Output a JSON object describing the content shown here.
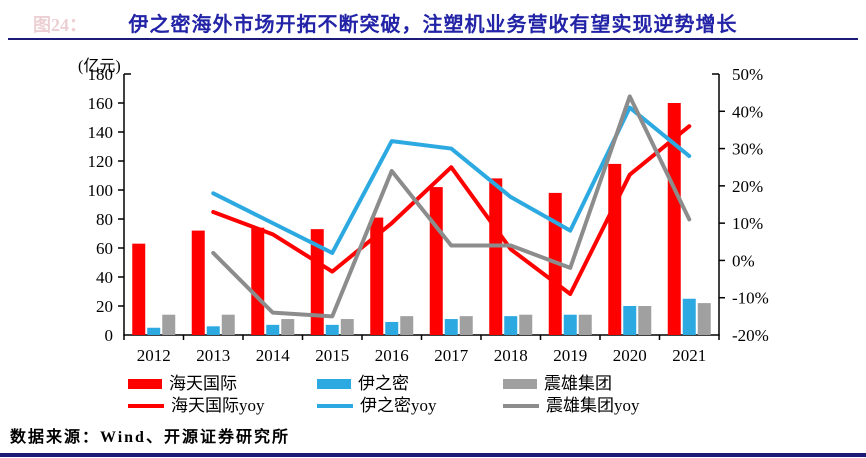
{
  "figure_label": "图24：",
  "title": "伊之密海外市场开拓不断突破，注塑机业务营收有望实现逆势增长",
  "source": "数据来源：Wind、开源证券研究所",
  "colors": {
    "title_navy": "#2223a6",
    "rule_navy": "#1c1c78",
    "red": "#fe0000",
    "blue": "#2ca9e1",
    "gray_bar": "#a0a0a0",
    "gray_line": "#8c8c8c",
    "axis_black": "#000000"
  },
  "chart_data": {
    "type": "bar+line combo",
    "categories": [
      "2012",
      "2013",
      "2014",
      "2015",
      "2016",
      "2017",
      "2018",
      "2019",
      "2020",
      "2021"
    ],
    "left_axis": {
      "unit": "(亿元)",
      "min": 0,
      "max": 180,
      "step": 20,
      "tick_labels": [
        "0",
        "20",
        "40",
        "60",
        "80",
        "100",
        "120",
        "140",
        "160",
        "180"
      ]
    },
    "right_axis": {
      "min": -20,
      "max": 50,
      "step": 10,
      "tick_labels": [
        "-20%",
        "-10%",
        "0%",
        "10%",
        "20%",
        "30%",
        "40%",
        "50%"
      ]
    },
    "bar_series": [
      {
        "name": "海天国际",
        "color": "#fe0000",
        "axis": "left",
        "values": [
          63,
          72,
          74,
          73,
          81,
          102,
          108,
          98,
          118,
          160
        ]
      },
      {
        "name": "伊之密",
        "color": "#2ca9e1",
        "axis": "left",
        "values": [
          5,
          6,
          7,
          7,
          9,
          11,
          13,
          14,
          20,
          25
        ]
      },
      {
        "name": "震雄集团",
        "color": "#a0a0a0",
        "axis": "left",
        "values": [
          14,
          14,
          11,
          11,
          13,
          13,
          14,
          14,
          20,
          22
        ]
      }
    ],
    "line_series": [
      {
        "name": "海天国际yoy",
        "color": "#fe0000",
        "axis": "right",
        "values": [
          null,
          13,
          7,
          -3,
          10,
          25,
          3,
          -9,
          23,
          36
        ]
      },
      {
        "name": "伊之密yoy",
        "color": "#2ca9e1",
        "axis": "right",
        "values": [
          null,
          18,
          10,
          2,
          32,
          30,
          17,
          8,
          41,
          28
        ]
      },
      {
        "name": "震雄集团yoy",
        "color": "#8c8c8c",
        "axis": "right",
        "values": [
          null,
          2,
          -14,
          -15,
          24,
          4,
          4,
          -2,
          44,
          11
        ]
      }
    ],
    "legend_position": "bottom",
    "grid": false
  },
  "legend": {
    "items": [
      {
        "label": "海天国际",
        "swatch": "bar",
        "color": "#fe0000"
      },
      {
        "label": "伊之密",
        "swatch": "bar",
        "color": "#2ca9e1"
      },
      {
        "label": "震雄集团",
        "swatch": "bar",
        "color": "#a0a0a0"
      },
      {
        "label": "海天国际yoy",
        "swatch": "line",
        "color": "#fe0000"
      },
      {
        "label": "伊之密yoy",
        "swatch": "line",
        "color": "#2ca9e1"
      },
      {
        "label": "震雄集团yoy",
        "swatch": "line",
        "color": "#8c8c8c"
      }
    ]
  }
}
